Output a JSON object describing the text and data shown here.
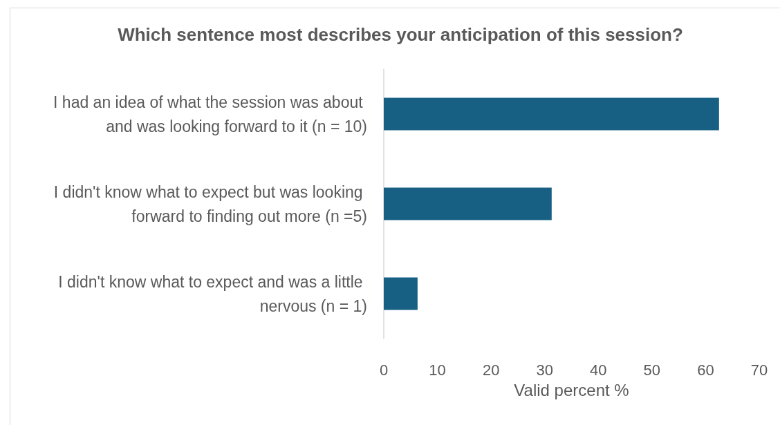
{
  "chart_data": {
    "type": "bar",
    "orientation": "horizontal",
    "title": "Which sentence most describes your anticipation of this session?",
    "categories": [
      "I had an idea of what the session was about and was looking forward to it (n = 10)",
      "I didn't know what to expect but was looking forward to finding out more (n =5)",
      "I didn't know what to expect and was a little nervous (n = 1)"
    ],
    "values": [
      62.5,
      31.3,
      6.3
    ],
    "color": "#176083",
    "xlim": [
      0,
      70
    ],
    "xticks": [
      0,
      10,
      20,
      30,
      40,
      50,
      60,
      70
    ],
    "xlabel": "Valid percent %"
  }
}
